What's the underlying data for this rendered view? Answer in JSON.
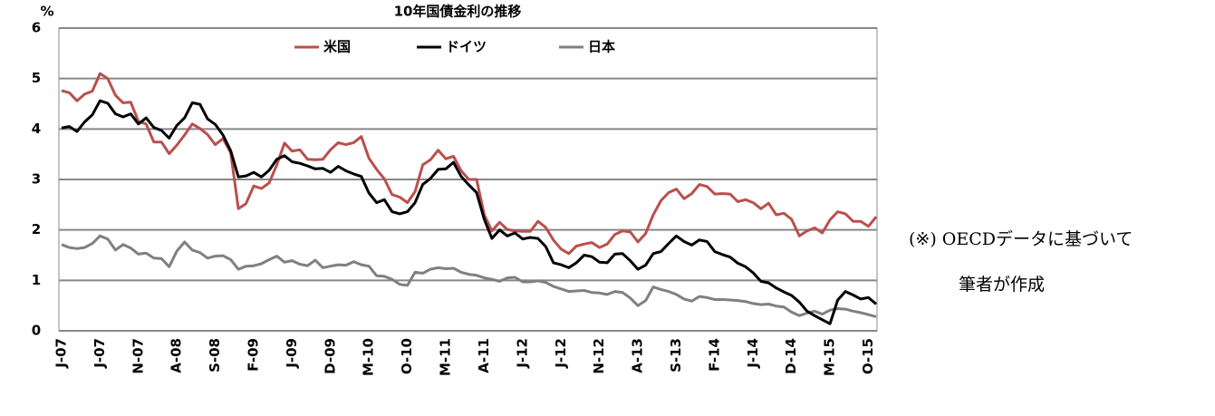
{
  "chart_data": {
    "type": "line",
    "title": "10年国債金利の推移",
    "y_label": "%",
    "categories": [
      "J-07",
      null,
      null,
      null,
      null,
      "J-07",
      null,
      null,
      null,
      null,
      "N-07",
      null,
      null,
      null,
      null,
      "A-08",
      null,
      null,
      null,
      null,
      "S-08",
      null,
      null,
      null,
      null,
      "F-09",
      null,
      null,
      null,
      null,
      "J-09",
      null,
      null,
      null,
      null,
      "D-09",
      null,
      null,
      null,
      null,
      "M-10",
      null,
      null,
      null,
      null,
      "O-10",
      null,
      null,
      null,
      null,
      "M-11",
      null,
      null,
      null,
      null,
      "A-11",
      null,
      null,
      null,
      null,
      "J-12",
      null,
      null,
      null,
      null,
      "J-12",
      null,
      null,
      null,
      null,
      "N-12",
      null,
      null,
      null,
      null,
      "A-13",
      null,
      null,
      null,
      null,
      "S-13",
      null,
      null,
      null,
      null,
      "F-14",
      null,
      null,
      null,
      null,
      "J-14",
      null,
      null,
      null,
      null,
      "D-14",
      null,
      null,
      null,
      null,
      "M-15",
      null,
      null,
      null,
      null,
      "O-15",
      null
    ],
    "series": [
      {
        "name": "米国",
        "color": "#b9504c",
        "values": [
          4.76,
          4.72,
          4.56,
          4.69,
          4.75,
          5.1,
          5.0,
          4.67,
          4.52,
          4.53,
          4.15,
          4.1,
          3.74,
          3.74,
          3.51,
          3.68,
          3.88,
          4.1,
          4.01,
          3.89,
          3.69,
          3.81,
          3.53,
          2.42,
          2.52,
          2.87,
          2.82,
          2.93,
          3.29,
          3.72,
          3.56,
          3.59,
          3.4,
          3.39,
          3.4,
          3.59,
          3.73,
          3.69,
          3.73,
          3.85,
          3.42,
          3.2,
          3.01,
          2.7,
          2.65,
          2.54,
          2.76,
          3.29,
          3.39,
          3.58,
          3.41,
          3.46,
          3.17,
          3.0,
          3.0,
          2.3,
          1.98,
          2.15,
          2.01,
          1.98,
          1.97,
          1.97,
          2.17,
          2.05,
          1.8,
          1.62,
          1.53,
          1.68,
          1.72,
          1.75,
          1.65,
          1.72,
          1.91,
          1.98,
          1.96,
          1.76,
          1.93,
          2.3,
          2.58,
          2.74,
          2.81,
          2.62,
          2.72,
          2.9,
          2.86,
          2.71,
          2.72,
          2.71,
          2.56,
          2.6,
          2.54,
          2.42,
          2.53,
          2.3,
          2.33,
          2.21,
          1.88,
          1.98,
          2.04,
          1.94,
          2.2,
          2.36,
          2.32,
          2.17,
          2.17,
          2.07,
          2.26
        ]
      },
      {
        "name": "ドイツ",
        "color": "#000000",
        "values": [
          4.02,
          4.05,
          3.95,
          4.14,
          4.28,
          4.56,
          4.51,
          4.3,
          4.24,
          4.3,
          4.1,
          4.22,
          4.03,
          3.97,
          3.82,
          4.07,
          4.22,
          4.52,
          4.49,
          4.2,
          4.09,
          3.88,
          3.57,
          3.05,
          3.07,
          3.14,
          3.05,
          3.18,
          3.4,
          3.47,
          3.35,
          3.32,
          3.27,
          3.21,
          3.22,
          3.14,
          3.26,
          3.17,
          3.11,
          3.06,
          2.73,
          2.54,
          2.6,
          2.36,
          2.32,
          2.36,
          2.54,
          2.9,
          3.02,
          3.2,
          3.21,
          3.34,
          3.06,
          2.89,
          2.74,
          2.21,
          1.83,
          2.0,
          1.88,
          1.94,
          1.82,
          1.85,
          1.83,
          1.67,
          1.35,
          1.31,
          1.25,
          1.35,
          1.5,
          1.47,
          1.36,
          1.35,
          1.52,
          1.53,
          1.39,
          1.22,
          1.3,
          1.53,
          1.57,
          1.73,
          1.88,
          1.77,
          1.7,
          1.8,
          1.77,
          1.57,
          1.51,
          1.46,
          1.34,
          1.27,
          1.15,
          0.98,
          0.95,
          0.85,
          0.77,
          0.7,
          0.57,
          0.39,
          0.3,
          0.22,
          0.14,
          0.61,
          0.78,
          0.71,
          0.63,
          0.66,
          0.53
        ]
      },
      {
        "name": "日本",
        "color": "#808080",
        "values": [
          1.71,
          1.65,
          1.63,
          1.65,
          1.73,
          1.88,
          1.82,
          1.6,
          1.71,
          1.64,
          1.52,
          1.54,
          1.44,
          1.43,
          1.27,
          1.58,
          1.76,
          1.6,
          1.55,
          1.44,
          1.48,
          1.49,
          1.41,
          1.22,
          1.28,
          1.29,
          1.33,
          1.41,
          1.48,
          1.36,
          1.39,
          1.32,
          1.29,
          1.4,
          1.25,
          1.28,
          1.31,
          1.3,
          1.37,
          1.31,
          1.28,
          1.09,
          1.08,
          1.02,
          0.92,
          0.9,
          1.16,
          1.14,
          1.22,
          1.25,
          1.23,
          1.24,
          1.16,
          1.12,
          1.1,
          1.05,
          1.02,
          0.98,
          1.05,
          1.06,
          0.97,
          0.97,
          0.99,
          0.96,
          0.88,
          0.83,
          0.78,
          0.79,
          0.8,
          0.76,
          0.75,
          0.72,
          0.78,
          0.76,
          0.65,
          0.5,
          0.6,
          0.87,
          0.82,
          0.78,
          0.72,
          0.63,
          0.59,
          0.68,
          0.66,
          0.62,
          0.62,
          0.61,
          0.6,
          0.58,
          0.54,
          0.52,
          0.53,
          0.49,
          0.47,
          0.37,
          0.3,
          0.35,
          0.39,
          0.33,
          0.41,
          0.44,
          0.43,
          0.39,
          0.36,
          0.32,
          0.28
        ]
      }
    ],
    "ylim": [
      0,
      6
    ],
    "yticks": [
      0,
      1,
      2,
      3,
      4,
      5,
      6
    ],
    "grid": true,
    "legend": "top",
    "annotations": [
      "(※) OECDデータに基づいて",
      "筆者が作成"
    ]
  }
}
